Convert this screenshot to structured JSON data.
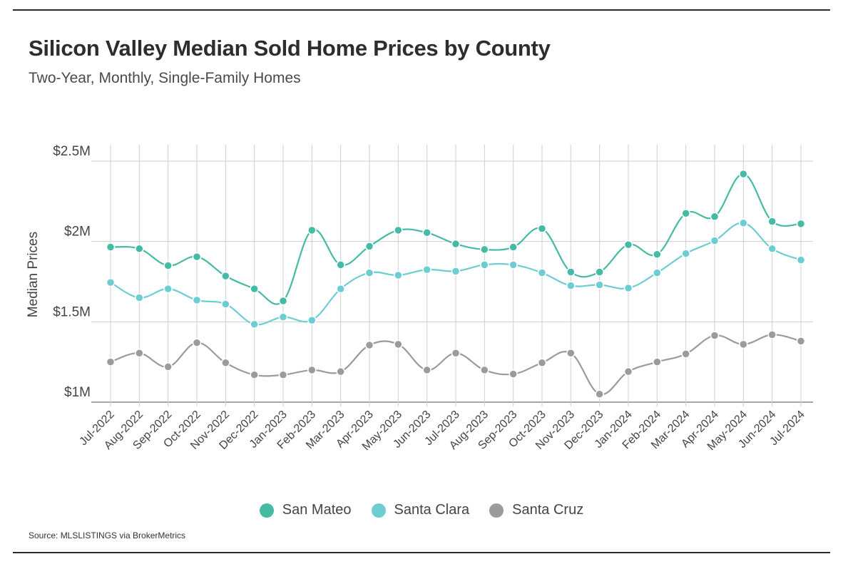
{
  "title": "Silicon Valley Median Sold Home Prices by County",
  "subtitle": "Two-Year, Monthly, Single-Family Homes",
  "source": "Source:  MLSLISTINGS via BrokerMetrics",
  "chart_data": {
    "type": "line",
    "ylabel": "Median Prices",
    "ylim": [
      1000000,
      2500000
    ],
    "yticks": [
      {
        "value": 1000000,
        "label": "$1M"
      },
      {
        "value": 1500000,
        "label": "$1.5M"
      },
      {
        "value": 2000000,
        "label": "$2M"
      },
      {
        "value": 2500000,
        "label": "$2.5M"
      }
    ],
    "grid": "vertical and horizontal",
    "legend_position": "bottom-center",
    "x": [
      "Jul-2022",
      "Aug-2022",
      "Sep-2022",
      "Oct-2022",
      "Nov-2022",
      "Dec-2022",
      "Jan-2023",
      "Feb-2023",
      "Mar-2023",
      "Apr-2023",
      "May-2023",
      "Jun-2023",
      "Jul-2023",
      "Aug-2023",
      "Sep-2023",
      "Oct-2023",
      "Nov-2023",
      "Dec-2023",
      "Jan-2024",
      "Feb-2024",
      "Mar-2024",
      "Apr-2024",
      "May-2024",
      "Jun-2024",
      "Jul-2024"
    ],
    "series": [
      {
        "name": "San Mateo",
        "color": "#45bba5",
        "values": [
          1965000,
          1955000,
          1850000,
          1905000,
          1785000,
          1705000,
          1630000,
          2070000,
          1855000,
          1970000,
          2070000,
          2055000,
          1985000,
          1950000,
          1965000,
          2080000,
          1810000,
          1810000,
          1980000,
          1920000,
          2175000,
          2155000,
          2420000,
          2125000,
          2110000
        ]
      },
      {
        "name": "Santa Clara",
        "color": "#6ccdd3",
        "values": [
          1745000,
          1650000,
          1705000,
          1635000,
          1610000,
          1485000,
          1530000,
          1510000,
          1705000,
          1805000,
          1790000,
          1825000,
          1815000,
          1855000,
          1855000,
          1805000,
          1725000,
          1730000,
          1710000,
          1805000,
          1925000,
          2005000,
          2115000,
          1955000,
          1885000
        ]
      },
      {
        "name": "Santa Cruz",
        "color": "#9b9b9b",
        "values": [
          1250000,
          1305000,
          1220000,
          1370000,
          1245000,
          1170000,
          1170000,
          1200000,
          1190000,
          1355000,
          1360000,
          1200000,
          1305000,
          1200000,
          1175000,
          1245000,
          1305000,
          1050000,
          1190000,
          1250000,
          1300000,
          1415000,
          1360000,
          1420000,
          1380000
        ]
      }
    ]
  }
}
